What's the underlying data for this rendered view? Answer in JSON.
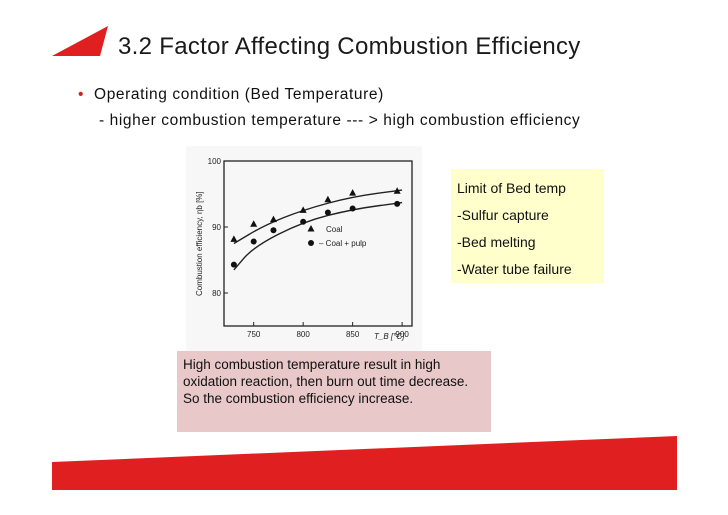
{
  "slide": {
    "title": "3.2 Factor Affecting Combustion Efficiency",
    "bullet": "Operating condition (Bed Temperature)",
    "sub_bullet": "- higher combustion temperature --- > high combustion efficiency"
  },
  "limit_box": {
    "items": [
      "Limit of Bed temp",
      "-Sulfur capture",
      "-Bed melting",
      "-Water tube failure"
    ]
  },
  "note": "High combustion temperature result in high oxidation reaction, then burn out time decrease. So the combustion efficiency increase.",
  "colors": {
    "accent_red": "#e02020",
    "limit_bg": "#ffffcc",
    "note_bg": "#e8c8c8"
  },
  "chart_data": {
    "type": "scatter",
    "xlabel": "T_B [°C]",
    "ylabel": "Combustion efficiency, ηb [%]",
    "xlim": [
      720,
      910
    ],
    "ylim": [
      75,
      100
    ],
    "x_ticks": [
      750,
      800,
      850,
      900
    ],
    "y_ticks": [
      80,
      90,
      100
    ],
    "legend": [
      "Coal",
      "– Coal + pulp"
    ],
    "legend_placement": "center-right",
    "grid": false,
    "series": [
      {
        "name": "Coal",
        "marker": "triangle",
        "x": [
          730,
          750,
          770,
          800,
          825,
          850,
          895
        ],
        "y": [
          88.2,
          90.5,
          91.2,
          92.6,
          94.2,
          95.2,
          95.5
        ],
        "fit": [
          [
            730,
            87.5
          ],
          [
            760,
            90.2
          ],
          [
            800,
            92.6
          ],
          [
            850,
            94.6
          ],
          [
            900,
            95.6
          ]
        ]
      },
      {
        "name": "Coal + pulp",
        "marker": "circle",
        "x": [
          730,
          750,
          770,
          800,
          825,
          850,
          895
        ],
        "y": [
          84.3,
          87.8,
          89.5,
          90.8,
          92.2,
          92.8,
          93.5
        ],
        "fit": [
          [
            730,
            83.5
          ],
          [
            750,
            87.0
          ],
          [
            800,
            90.8
          ],
          [
            850,
            92.7
          ],
          [
            900,
            93.7
          ]
        ]
      }
    ]
  }
}
